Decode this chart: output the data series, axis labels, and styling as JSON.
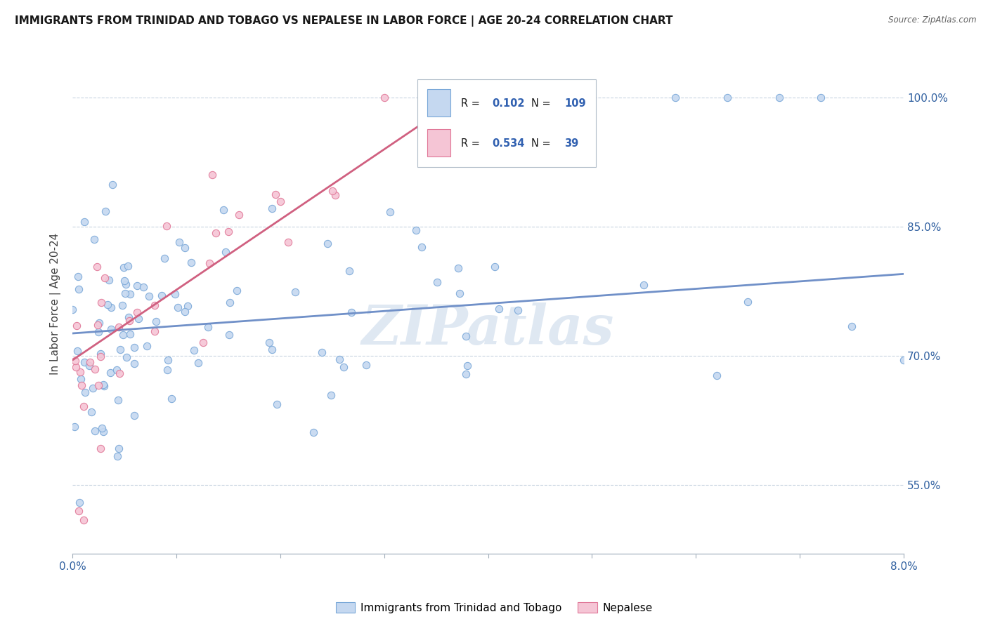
{
  "title": "IMMIGRANTS FROM TRINIDAD AND TOBAGO VS NEPALESE IN LABOR FORCE | AGE 20-24 CORRELATION CHART",
  "source": "Source: ZipAtlas.com",
  "ylabel": "In Labor Force | Age 20-24",
  "xlim": [
    0.0,
    0.08
  ],
  "ylim": [
    0.47,
    1.05
  ],
  "xticks": [
    0.0,
    0.01,
    0.02,
    0.03,
    0.04,
    0.05,
    0.06,
    0.07,
    0.08
  ],
  "yticks": [
    0.55,
    0.7,
    0.85,
    1.0
  ],
  "yticklabels": [
    "55.0%",
    "70.0%",
    "85.0%",
    "100.0%"
  ],
  "blue_fill": "#c5d8f0",
  "blue_edge": "#7aa8d8",
  "pink_fill": "#f5c5d5",
  "pink_edge": "#e07898",
  "blue_line": "#7090c8",
  "pink_line": "#d06080",
  "R_blue": 0.102,
  "N_blue": 109,
  "R_pink": 0.534,
  "N_pink": 39,
  "watermark": "ZIPatlas",
  "blue_line_x0": 0.0,
  "blue_line_y0": 0.726,
  "blue_line_x1": 0.08,
  "blue_line_y1": 0.795,
  "pink_line_x0": 0.0,
  "pink_line_y0": 0.695,
  "pink_line_x1": 0.038,
  "pink_line_y1": 1.005
}
